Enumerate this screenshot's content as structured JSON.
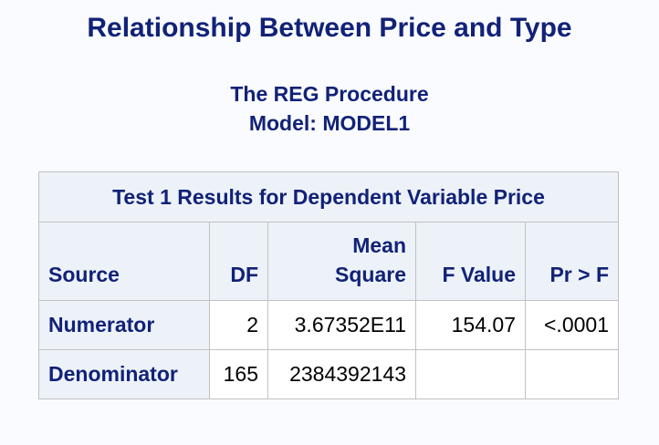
{
  "title": "Relationship Between Price and Type",
  "procedure": "The REG Procedure",
  "model": "Model: MODEL1",
  "table": {
    "caption": "Test 1 Results for Dependent Variable Price",
    "headers": {
      "source": "Source",
      "df": "DF",
      "mean_square_line1": "Mean",
      "mean_square_line2": "Square",
      "f_value": "F Value",
      "pr_f": "Pr > F"
    },
    "rows": [
      {
        "source": "Numerator",
        "df": "2",
        "mean_square": "3.67352E11",
        "f_value": "154.07",
        "pr_f": "<.0001"
      },
      {
        "source": "Denominator",
        "df": "165",
        "mean_square": "2384392143",
        "f_value": "",
        "pr_f": ""
      }
    ]
  }
}
